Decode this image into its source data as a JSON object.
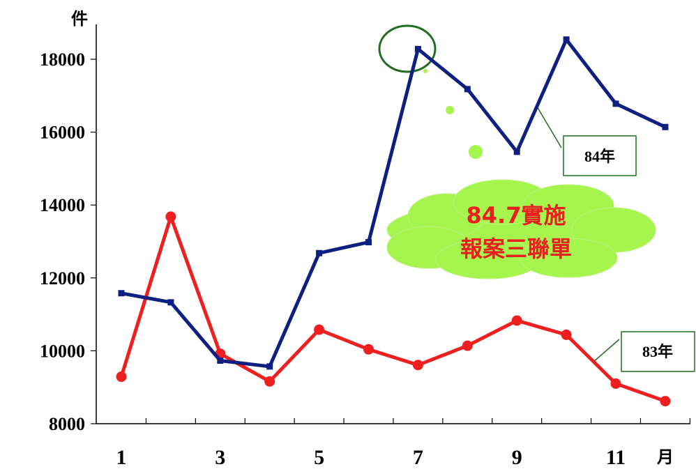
{
  "chart_data": {
    "type": "line",
    "y_unit_label": "件",
    "x_unit_label": "月",
    "x": [
      1,
      2,
      3,
      4,
      5,
      6,
      7,
      8,
      9,
      10,
      11,
      12
    ],
    "x_tick_labels": [
      "1",
      "3",
      "5",
      "7",
      "9",
      "11"
    ],
    "x_tick_values": [
      1,
      3,
      5,
      7,
      9,
      11
    ],
    "ylim": [
      8000,
      18000
    ],
    "y_ticks": [
      8000,
      10000,
      12000,
      14000,
      16000,
      18000
    ],
    "y_tick_labels": [
      "8000",
      "10000",
      "12000",
      "14000",
      "16000",
      "18000"
    ],
    "grid": false,
    "series": [
      {
        "name": "84年",
        "color": "#0d1f80",
        "marker": "square",
        "values": [
          11580,
          11330,
          9730,
          9570,
          12680,
          12980,
          18280,
          17180,
          15460,
          18540,
          16780,
          16140
        ]
      },
      {
        "name": "83年",
        "color": "#ee1f1f",
        "marker": "circle",
        "values": [
          9290,
          13680,
          9920,
          9160,
          10580,
          10040,
          9610,
          10140,
          10830,
          10440,
          9100,
          8620
        ]
      }
    ],
    "annotation": {
      "line1": "84.7實施",
      "line2": "報案三聯單",
      "fill": "#a6f54f",
      "highlight_color": "#1e6e1e"
    }
  }
}
